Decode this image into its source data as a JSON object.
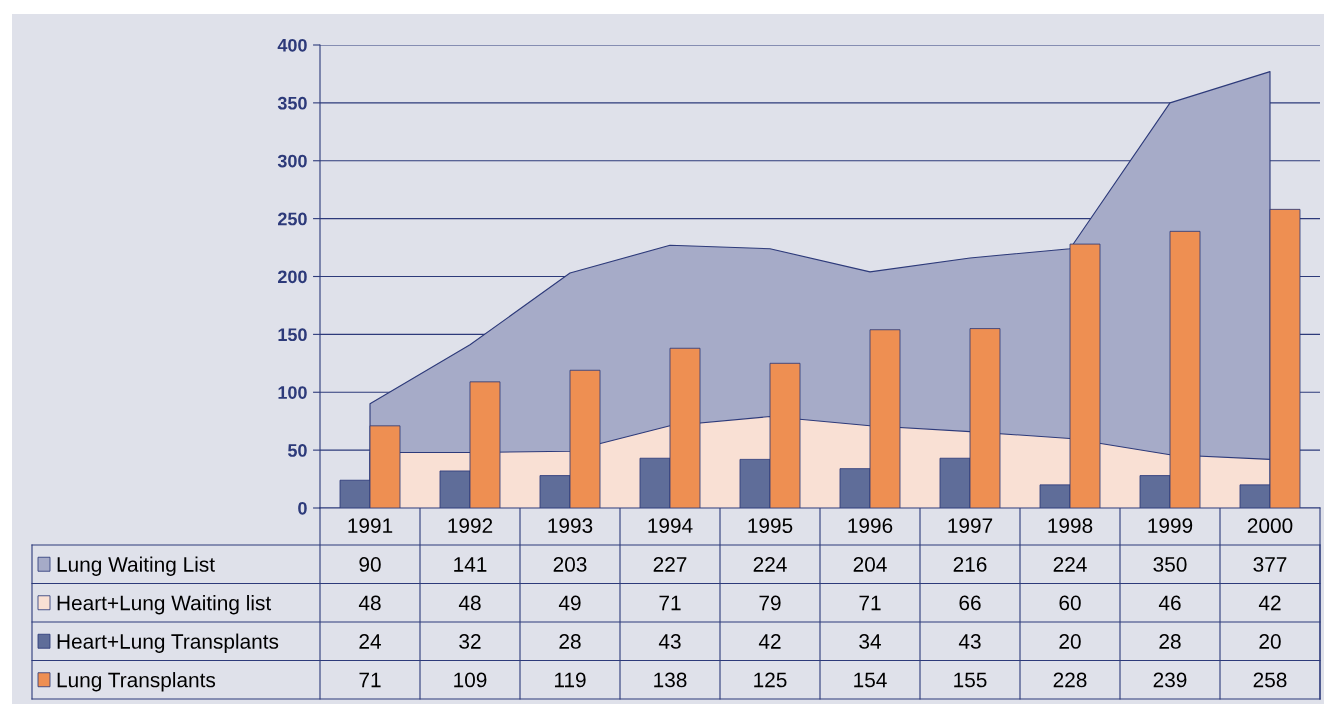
{
  "chart_data": {
    "type": "bar",
    "categories": [
      "1991",
      "1992",
      "1993",
      "1994",
      "1995",
      "1996",
      "1997",
      "1998",
      "1999",
      "2000"
    ],
    "series": [
      {
        "name": "Lung Waiting List",
        "type": "area",
        "color": "#a6abc8",
        "values": [
          90,
          141,
          203,
          227,
          224,
          204,
          216,
          224,
          350,
          377
        ]
      },
      {
        "name": "Heart+Lung Waiting list",
        "type": "area",
        "color": "#f9e0d4",
        "values": [
          48,
          48,
          49,
          71,
          79,
          71,
          66,
          60,
          46,
          42
        ]
      },
      {
        "name": "Heart+Lung Transplants",
        "color": "#5f6d99",
        "values": [
          24,
          32,
          28,
          43,
          42,
          34,
          43,
          20,
          28,
          20
        ]
      },
      {
        "name": "Lung Transplants",
        "color": "#ee8f52",
        "values": [
          71,
          109,
          119,
          138,
          125,
          154,
          155,
          228,
          239,
          258
        ]
      }
    ],
    "ylim": [
      0,
      400
    ],
    "yticks": [
      0,
      50,
      100,
      150,
      200,
      250,
      300,
      350,
      400
    ],
    "grid": "y",
    "legend": "bottom left",
    "data_labels": true
  }
}
